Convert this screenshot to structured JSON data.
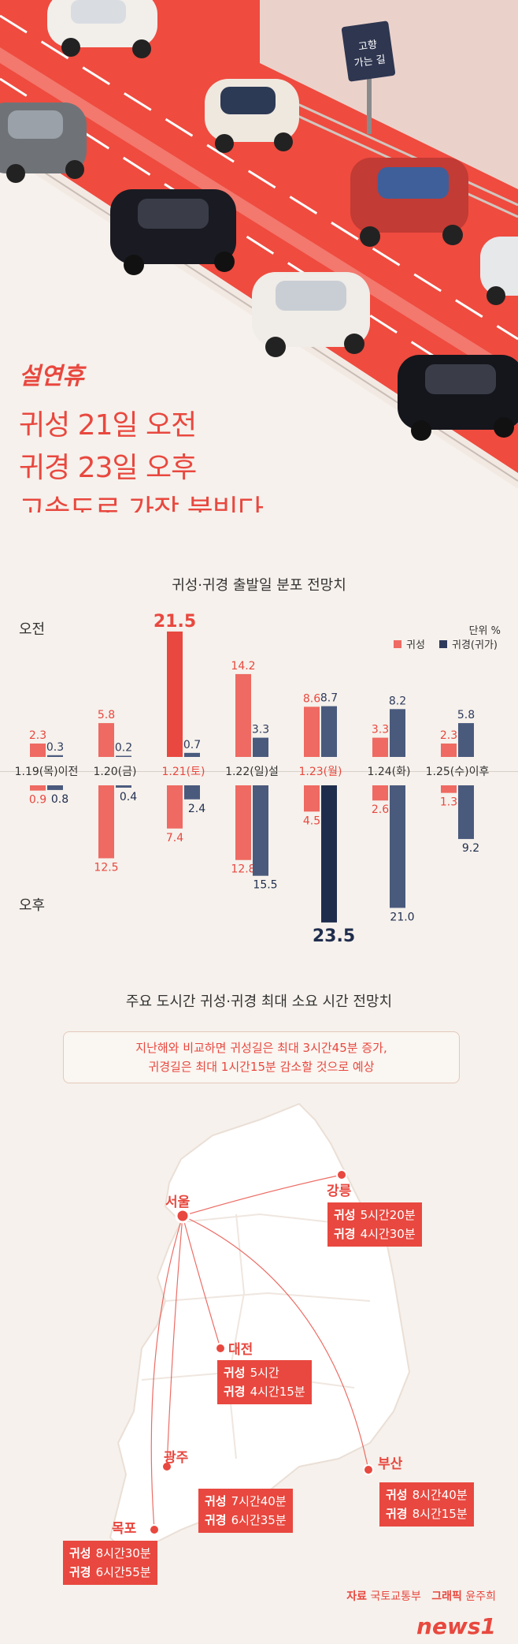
{
  "headline": {
    "pre": "설연휴",
    "line1": "귀성 21일 오전",
    "line2": "귀경 23일 오후",
    "line3": "고속도로 가장 붐빈다"
  },
  "sign": {
    "line1": "고향",
    "line2": "가는 길"
  },
  "chart_section": {
    "title": "귀성·귀경 출발일 분포 전망치",
    "am_label": "오전",
    "pm_label": "오후",
    "unit": "단위 %",
    "legend_homeward": "귀성",
    "legend_return": "귀경(귀가)"
  },
  "chart_data": {
    "type": "bar",
    "categories": [
      "1.19(목)이전",
      "1.20(금)",
      "1.21(토)",
      "1.22(일)설",
      "1.23(월)",
      "1.24(화)",
      "1.25(수)이후"
    ],
    "series": [
      {
        "name": "귀성",
        "period": "오전",
        "values": [
          2.3,
          5.8,
          21.5,
          14.2,
          8.6,
          3.3,
          2.3
        ]
      },
      {
        "name": "귀경(귀가)",
        "period": "오전",
        "values": [
          0.3,
          0.2,
          0.7,
          3.3,
          8.7,
          8.2,
          5.8
        ]
      },
      {
        "name": "귀성",
        "period": "오후",
        "values": [
          0.9,
          12.5,
          7.4,
          12.8,
          4.5,
          2.6,
          1.3
        ]
      },
      {
        "name": "귀경(귀가)",
        "period": "오후",
        "values": [
          0.8,
          0.4,
          2.4,
          15.5,
          23.5,
          21.0,
          9.2
        ]
      }
    ],
    "colors": {
      "homeward": "#ee6a62",
      "return": "#4a5a7d",
      "peak_homeward": "#e8483f",
      "peak_return": "#1f2d4d"
    },
    "legend_position": "top-right"
  },
  "map_section": {
    "title": "주요 도시간 귀성·귀경 최대 소요 시간 전망치",
    "note_line1": "지난해와 비교하면 귀성길은 최대 3시간45분 증가,",
    "note_line2": "귀경길은 최대 1시간15분 감소할 것으로 예상",
    "origin": "서울",
    "cities": [
      {
        "name": "강릉",
        "home_label": "귀성",
        "home": "5시간20분",
        "back_label": "귀경",
        "back": "4시간30분"
      },
      {
        "name": "대전",
        "home_label": "귀성",
        "home": "5시간",
        "back_label": "귀경",
        "back": "4시간15분"
      },
      {
        "name": "광주",
        "home_label": "귀성",
        "home": "7시간40분",
        "back_label": "귀경",
        "back": "6시간35분"
      },
      {
        "name": "부산",
        "home_label": "귀성",
        "home": "8시간40분",
        "back_label": "귀경",
        "back": "8시간15분"
      },
      {
        "name": "목포",
        "home_label": "귀성",
        "home": "8시간30분",
        "back_label": "귀경",
        "back": "6시간55분"
      }
    ]
  },
  "source": {
    "label": "자료",
    "value": "국토교통부",
    "graphic_label": "그래픽",
    "graphic_value": "윤주희"
  },
  "logo": "news1"
}
